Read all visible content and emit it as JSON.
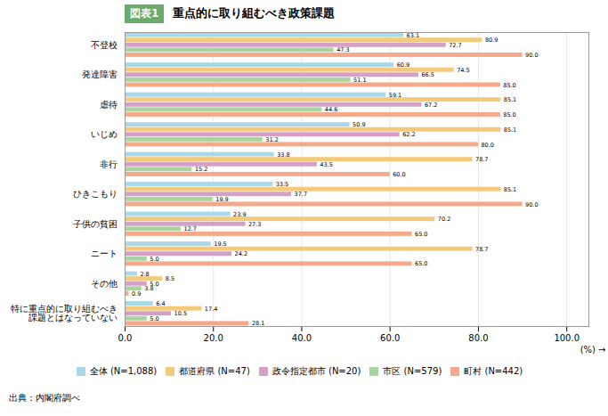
{
  "chart_data": {
    "type": "bar",
    "orientation": "horizontal",
    "title": "重点的に取り組むべき政策課題",
    "annotations": [
      {
        "text": "図表1",
        "color": "#6aaa6a"
      }
    ],
    "source": "出典：内閣府調べ",
    "x_label": "(%)",
    "categories": [
      "不登校",
      "発達障害",
      "虐待",
      "いじめ",
      "非行",
      "ひきこもり",
      "子供の貧困",
      "ニート",
      "その他",
      "特に重点的に取り組むべき\n課題とはなっていない"
    ],
    "series": [
      {
        "name": "全体 (N=1,088)",
        "color": "#a8d8ea",
        "values": [
          63.1,
          60.9,
          59.1,
          50.9,
          33.8,
          33.5,
          23.9,
          19.5,
          2.8,
          6.4
        ],
        "value_labels": [
          "63.1",
          "60.9",
          "59.1",
          "50.9",
          "33.8",
          "33.5",
          "23.9",
          "19.5",
          "2.8",
          "6.4"
        ]
      },
      {
        "name": "都道府県 (N=47)",
        "color": "#f5c97a",
        "values": [
          80.9,
          74.5,
          85.1,
          85.1,
          78.7,
          85.1,
          70.2,
          78.7,
          8.5,
          17.4
        ],
        "value_labels": [
          "80.9",
          "74.5",
          "85.1",
          "85.1",
          "78.7",
          "85.1",
          "70.2",
          "78.7",
          "8.5",
          "17.4"
        ]
      },
      {
        "name": "政令指定都市 (N=20)",
        "color": "#d4a0c8",
        "values": [
          72.7,
          66.5,
          67.2,
          62.2,
          43.5,
          37.7,
          27.3,
          24.2,
          5.0,
          10.5
        ],
        "value_labels": [
          "72.7",
          "66.5",
          "67.2",
          "62.2",
          "43.5",
          "37.7",
          "27.3",
          "24.2",
          "5.0",
          "10.5"
        ]
      },
      {
        "name": "市区 (N=579)",
        "color": "#a8d4a0",
        "values": [
          47.3,
          51.1,
          44.6,
          31.2,
          15.2,
          19.9,
          12.7,
          5.0,
          3.8,
          5.0
        ],
        "value_labels": [
          "47.3",
          "51.1",
          "44.6",
          "31.2",
          "15.2",
          "19.9",
          "12.7",
          "5.0",
          "3.8",
          "5.0"
        ]
      },
      {
        "name": "町村 (N=442)",
        "color": "#f4a98a",
        "values": [
          90.0,
          85.0,
          85.0,
          80.0,
          60.0,
          90.0,
          65.0,
          65.0,
          0.9,
          28.1
        ],
        "value_labels": [
          "90.0",
          "85.0",
          "85.0",
          "80.0",
          "60.0",
          "90.0",
          "65.0",
          "65.0",
          "0.9",
          "28.1"
        ]
      }
    ],
    "xlim": [
      0,
      105
    ],
    "xticks": [
      {
        "value": 0,
        "label": "0.0"
      },
      {
        "value": 20,
        "label": "20.0"
      },
      {
        "value": 40,
        "label": "40.0"
      },
      {
        "value": 60,
        "label": "60.0"
      },
      {
        "value": 80,
        "label": "80.0"
      },
      {
        "value": 100,
        "label": "100.0"
      }
    ],
    "grid": true,
    "data_labels": true
  }
}
